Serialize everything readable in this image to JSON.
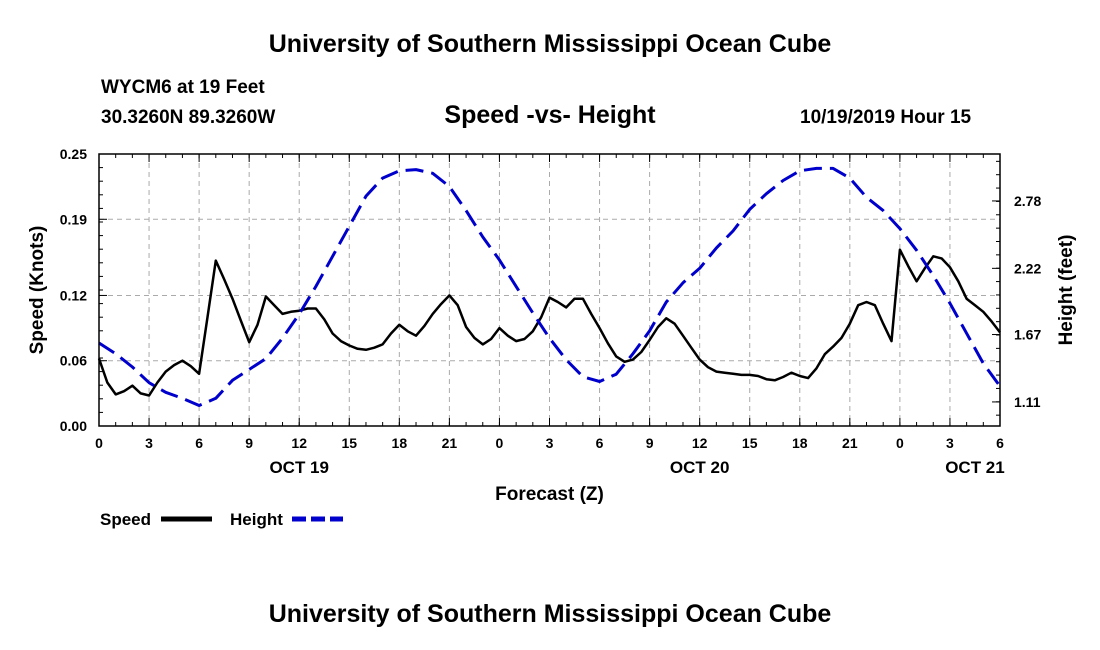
{
  "header": {
    "title": "University of Southern Mississippi Ocean Cube",
    "station": "WYCM6 at 19 Feet",
    "coordinates": "30.3260N 89.3260W",
    "chart_title": "Speed -vs- Height",
    "date": "10/19/2019 Hour 15"
  },
  "footer": {
    "title": "University of Southern Mississippi Ocean Cube"
  },
  "colors": {
    "speed": "#000000",
    "height": "#0000cc",
    "grid": "#aaaaaa"
  },
  "chart_data": {
    "type": "line",
    "title": "Speed -vs- Height",
    "xlabel": "Forecast (Z)",
    "ylabel": "Speed (Knots)",
    "y2label": "Height (feet)",
    "xlim": [
      0,
      54
    ],
    "ylim": [
      0,
      0.25
    ],
    "y2lim": [
      0.91,
      3.17
    ],
    "x_ticks": [
      0,
      3,
      6,
      9,
      12,
      15,
      18,
      21,
      24,
      27,
      30,
      33,
      36,
      39,
      42,
      45,
      48,
      51,
      54
    ],
    "x_tick_labels": [
      "0",
      "3",
      "6",
      "9",
      "12",
      "15",
      "18",
      "21",
      "0",
      "3",
      "6",
      "9",
      "12",
      "15",
      "18",
      "21",
      "0",
      "3",
      "6"
    ],
    "y_ticks": [
      0.0,
      0.06,
      0.12,
      0.19,
      0.25
    ],
    "y_tick_labels": [
      "0.00",
      "0.06",
      "0.12",
      "0.19",
      "0.25"
    ],
    "y2_ticks": [
      1.11,
      1.67,
      2.22,
      2.78
    ],
    "y2_tick_labels": [
      "1.11",
      "1.67",
      "2.22",
      "2.78"
    ],
    "day_labels": [
      {
        "x": 12,
        "label": "OCT 19"
      },
      {
        "x": 36,
        "label": "OCT 20"
      },
      {
        "x": 52.5,
        "label": "OCT 21"
      }
    ],
    "legend": [
      {
        "name": "Speed",
        "style": "solid"
      },
      {
        "name": "Height",
        "style": "dashed"
      }
    ],
    "series": [
      {
        "name": "Speed",
        "axis": "left",
        "style": "solid",
        "x": [
          0,
          0.5,
          1,
          1.5,
          2,
          2.5,
          3,
          3.5,
          4,
          4.5,
          5,
          5.5,
          6,
          6.5,
          7,
          7.5,
          8,
          8.5,
          9,
          9.5,
          10,
          10.5,
          11,
          11.5,
          12,
          12.5,
          13,
          13.5,
          14,
          14.5,
          15,
          15.5,
          16,
          16.5,
          17,
          17.5,
          18,
          18.5,
          19,
          19.5,
          20,
          20.5,
          21,
          21.5,
          22,
          22.5,
          23,
          23.5,
          24,
          24.5,
          25,
          25.5,
          26,
          26.5,
          27,
          27.5,
          28,
          28.5,
          29,
          29.5,
          30,
          30.5,
          31,
          31.5,
          32,
          32.5,
          33,
          33.5,
          34,
          34.5,
          35,
          35.5,
          36,
          36.5,
          37,
          37.5,
          38,
          38.5,
          39,
          39.5,
          40,
          40.5,
          41,
          41.5,
          42,
          42.5,
          43,
          43.5,
          44,
          44.5,
          45,
          45.5,
          46,
          46.5,
          47,
          47.5,
          48,
          48.5,
          49,
          49.5,
          50,
          50.5,
          51,
          51.5,
          52,
          52.5,
          53,
          53.5,
          54
        ],
        "values": [
          0.062,
          0.04,
          0.029,
          0.032,
          0.037,
          0.03,
          0.028,
          0.04,
          0.05,
          0.056,
          0.06,
          0.055,
          0.048,
          0.1,
          0.152,
          0.135,
          0.117,
          0.097,
          0.077,
          0.093,
          0.119,
          0.111,
          0.103,
          0.105,
          0.106,
          0.108,
          0.108,
          0.098,
          0.085,
          0.078,
          0.074,
          0.071,
          0.07,
          0.072,
          0.075,
          0.085,
          0.093,
          0.087,
          0.083,
          0.092,
          0.103,
          0.112,
          0.12,
          0.111,
          0.091,
          0.081,
          0.075,
          0.08,
          0.09,
          0.083,
          0.078,
          0.08,
          0.087,
          0.1,
          0.118,
          0.114,
          0.109,
          0.117,
          0.117,
          0.103,
          0.09,
          0.076,
          0.064,
          0.059,
          0.061,
          0.068,
          0.079,
          0.091,
          0.099,
          0.094,
          0.083,
          0.072,
          0.061,
          0.054,
          0.05,
          0.049,
          0.048,
          0.047,
          0.047,
          0.046,
          0.043,
          0.042,
          0.045,
          0.049,
          0.046,
          0.044,
          0.053,
          0.066,
          0.073,
          0.081,
          0.094,
          0.111,
          0.114,
          0.111,
          0.094,
          0.078,
          0.162,
          0.147,
          0.133,
          0.145,
          0.156,
          0.154,
          0.146,
          0.133,
          0.117,
          0.111,
          0.105,
          0.096,
          0.086
        ]
      },
      {
        "name": "Height",
        "axis": "right",
        "style": "dashed",
        "x": [
          0,
          1,
          2,
          3,
          4,
          5,
          6,
          7,
          8,
          9,
          10,
          11,
          12,
          13,
          14,
          15,
          16,
          17,
          18,
          19,
          20,
          21,
          22,
          23,
          24,
          25,
          26,
          27,
          28,
          29,
          30,
          31,
          32,
          33,
          34,
          35,
          36,
          37,
          38,
          39,
          40,
          41,
          42,
          43,
          44,
          45,
          46,
          47,
          48,
          49,
          50,
          51,
          52,
          53,
          54
        ],
        "values": [
          1.6,
          1.51,
          1.4,
          1.27,
          1.19,
          1.14,
          1.08,
          1.14,
          1.29,
          1.38,
          1.47,
          1.64,
          1.84,
          2.07,
          2.32,
          2.57,
          2.82,
          2.97,
          3.03,
          3.04,
          3.01,
          2.9,
          2.7,
          2.48,
          2.29,
          2.07,
          1.85,
          1.64,
          1.46,
          1.32,
          1.28,
          1.34,
          1.51,
          1.7,
          1.94,
          2.1,
          2.22,
          2.39,
          2.53,
          2.71,
          2.84,
          2.95,
          3.03,
          3.05,
          3.05,
          2.97,
          2.81,
          2.7,
          2.55,
          2.37,
          2.16,
          1.93,
          1.68,
          1.43,
          1.24
        ]
      }
    ]
  }
}
